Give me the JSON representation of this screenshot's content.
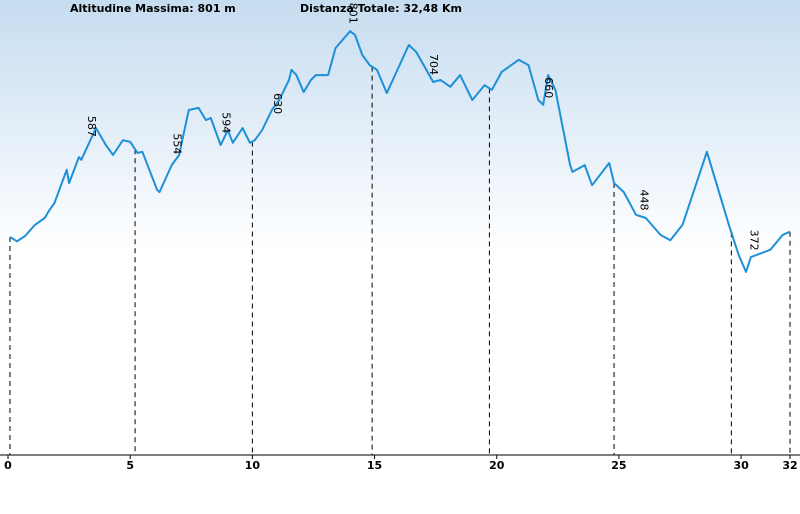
{
  "chart_data": {
    "type": "line",
    "title": "Altitudine Massima: 801 m",
    "subtitle": "Distanza Totale: 32,48 Km",
    "x": [
      0.08,
      0.37,
      0.7,
      1.1,
      1.5,
      1.7,
      1.9,
      2.1,
      2.4,
      2.5,
      2.9,
      3.0,
      3.6,
      4.0,
      4.3,
      4.7,
      5.0,
      5.3,
      5.5,
      6.1,
      6.2,
      6.7,
      7.0,
      7.4,
      7.8,
      8.1,
      8.3,
      8.7,
      9.0,
      9.2,
      9.6,
      9.9,
      10.1,
      10.4,
      10.8,
      11.1,
      11.5,
      11.6,
      11.8,
      12.1,
      12.4,
      12.6,
      13.1,
      13.4,
      14.0,
      14.2,
      14.5,
      14.8,
      15.1,
      15.5,
      16.4,
      16.7,
      17.4,
      17.7,
      18.1,
      18.5,
      19.0,
      19.5,
      19.8,
      20.2,
      20.9,
      21.3,
      21.7,
      21.9,
      22.1,
      22.4,
      23.0,
      23.1,
      23.6,
      23.9,
      24.6,
      24.8,
      25.2,
      25.7,
      26.1,
      26.7,
      27.1,
      27.6,
      28.6,
      29.5,
      29.9,
      30.2,
      30.4,
      31.2,
      31.7,
      32.0
    ],
    "values": [
      412,
      404,
      414,
      435,
      448,
      463,
      476,
      501,
      539,
      514,
      563,
      558,
      618,
      586,
      567,
      595,
      592,
      571,
      573,
      501,
      497,
      548,
      567,
      652,
      656,
      633,
      637,
      586,
      614,
      590,
      618,
      590,
      595,
      614,
      652,
      671,
      709,
      728,
      718,
      686,
      709,
      718,
      718,
      769,
      801,
      794,
      756,
      737,
      728,
      684,
      775,
      762,
      705,
      709,
      696,
      718,
      671,
      699,
      690,
      724,
      747,
      737,
      671,
      662,
      718,
      690,
      548,
      535,
      548,
      510,
      552,
      514,
      497,
      454,
      448,
      416,
      406,
      435,
      573,
      435,
      378,
      346,
      374,
      388,
      416,
      422
    ],
    "color": "#1e90d8",
    "xlim": [
      0,
      32
    ],
    "ylim": [
      0,
      860
    ],
    "xticks": [
      0,
      5,
      10,
      15,
      20,
      25,
      30,
      32
    ],
    "markers": [
      0.08,
      5.2,
      10.0,
      14.9,
      19.7,
      24.8,
      29.6,
      32.0
    ],
    "annotations": [
      {
        "x": 3.4,
        "value": 587
      },
      {
        "x": 6.9,
        "value": 554
      },
      {
        "x": 8.9,
        "value": 594
      },
      {
        "x": 11.0,
        "value": 630
      },
      {
        "x": 14.1,
        "value": 801
      },
      {
        "x": 17.4,
        "value": 704
      },
      {
        "x": 22.1,
        "value": 660
      },
      {
        "x": 26.0,
        "value": 448
      },
      {
        "x": 30.5,
        "value": 372
      }
    ]
  }
}
